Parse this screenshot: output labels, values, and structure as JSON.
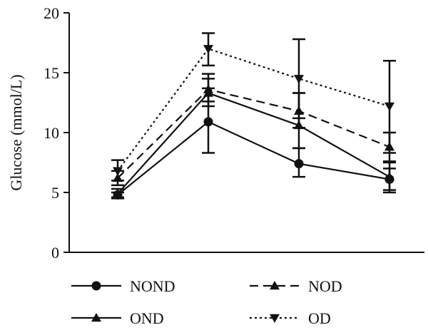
{
  "chart_data": {
    "type": "line",
    "title": "",
    "xlabel": "",
    "ylabel": "Glucose (mmol/L)",
    "ylim": [
      0,
      20
    ],
    "yticks": [
      0,
      5,
      10,
      15,
      20
    ],
    "x": [
      1,
      2,
      3,
      4
    ],
    "grid": false,
    "legend_position": "bottom",
    "series": [
      {
        "name": "NOND",
        "marker": "circle",
        "dash": "solid",
        "color": "#111111",
        "values": [
          4.8,
          10.9,
          7.4,
          6.1
        ],
        "err_low": [
          4.6,
          8.3,
          6.3,
          5.2
        ],
        "err_high": [
          5.0,
          13.7,
          8.7,
          7.0
        ]
      },
      {
        "name": "OND",
        "marker": "triangle-up",
        "dash": "solid",
        "color": "#111111",
        "values": [
          4.9,
          13.3,
          10.6,
          6.3
        ],
        "err_low": [
          4.5,
          12.2,
          8.7,
          5.0
        ],
        "err_high": [
          5.3,
          14.5,
          13.3,
          7.6
        ]
      },
      {
        "name": "NOD",
        "marker": "triangle-up",
        "dash": "dashed",
        "color": "#111111",
        "values": [
          6.2,
          13.6,
          11.8,
          8.8
        ],
        "err_low": [
          5.6,
          12.6,
          10.4,
          7.5
        ],
        "err_high": [
          6.8,
          14.9,
          13.3,
          10.0
        ]
      },
      {
        "name": "OD",
        "marker": "triangle-down",
        "dash": "dotted",
        "color": "#111111",
        "values": [
          6.8,
          17.0,
          14.5,
          12.2
        ],
        "err_low": [
          6.0,
          15.6,
          11.2,
          8.3
        ],
        "err_high": [
          7.7,
          18.3,
          17.8,
          16.0
        ]
      }
    ],
    "legend": [
      {
        "series": "NOND",
        "row": 0,
        "col": 0
      },
      {
        "series": "NOD",
        "row": 0,
        "col": 1
      },
      {
        "series": "OND",
        "row": 1,
        "col": 0
      },
      {
        "series": "OD",
        "row": 1,
        "col": 1
      }
    ]
  }
}
